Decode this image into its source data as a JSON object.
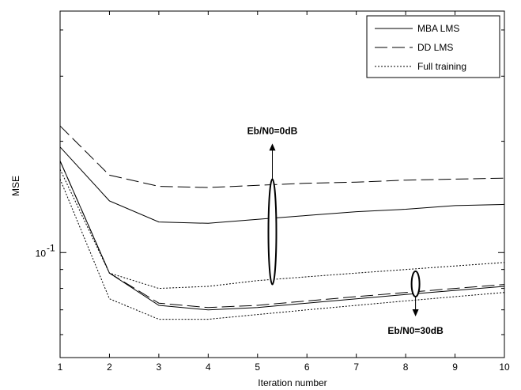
{
  "chart_data": {
    "type": "line",
    "xlabel": "Iteration number",
    "ylabel": "MSE",
    "x": [
      1,
      2,
      3,
      4,
      5,
      6,
      7,
      8,
      9,
      10
    ],
    "xlim": [
      1,
      10
    ],
    "ylim": [
      0.052,
      0.45
    ],
    "yscale": "log",
    "x_ticks": [
      "1",
      "2",
      "3",
      "4",
      "5",
      "6",
      "7",
      "8",
      "9",
      "10"
    ],
    "y_tick_label": {
      "base": "10",
      "exponent": "-1"
    },
    "grid": false,
    "legend_position": "top-right",
    "legend": [
      {
        "label": "MBA LMS",
        "style": "solid"
      },
      {
        "label": "DD LMS",
        "style": "dashed"
      },
      {
        "label": "Full training",
        "style": "dotted"
      }
    ],
    "series": [
      {
        "name": "MBA LMS",
        "group": "Eb/N0=0dB",
        "style": "solid",
        "values": [
          0.193,
          0.138,
          0.121,
          0.12,
          0.123,
          0.126,
          0.129,
          0.131,
          0.134,
          0.135
        ]
      },
      {
        "name": "DD LMS",
        "group": "Eb/N0=0dB",
        "style": "dashed",
        "values": [
          0.22,
          0.162,
          0.151,
          0.15,
          0.152,
          0.154,
          0.155,
          0.157,
          0.158,
          0.159
        ]
      },
      {
        "name": "Full training",
        "group": "Eb/N0=0dB",
        "style": "dotted",
        "values": [
          0.168,
          0.088,
          0.08,
          0.081,
          0.084,
          0.086,
          0.088,
          0.09,
          0.092,
          0.094
        ]
      },
      {
        "name": "MBA LMS",
        "group": "Eb/N0=30dB",
        "style": "solid",
        "values": [
          0.177,
          0.088,
          0.072,
          0.07,
          0.071,
          0.073,
          0.075,
          0.077,
          0.079,
          0.081
        ]
      },
      {
        "name": "DD LMS",
        "group": "Eb/N0=30dB",
        "style": "dashed",
        "values": [
          0.177,
          0.088,
          0.073,
          0.071,
          0.072,
          0.074,
          0.076,
          0.078,
          0.08,
          0.082
        ]
      },
      {
        "name": "Full training",
        "group": "Eb/N0=30dB",
        "style": "dotted",
        "values": [
          0.158,
          0.075,
          0.066,
          0.066,
          0.068,
          0.07,
          0.072,
          0.074,
          0.076,
          0.078
        ]
      }
    ],
    "annotations": [
      {
        "text": "Eb/N0=0dB",
        "x": 5.3,
        "y_low": 0.082,
        "y_high": 0.158,
        "arrow": "up"
      },
      {
        "text": "Eb/N0=30dB",
        "x": 8.2,
        "y_low": 0.076,
        "y_high": 0.089,
        "arrow": "down"
      }
    ]
  }
}
